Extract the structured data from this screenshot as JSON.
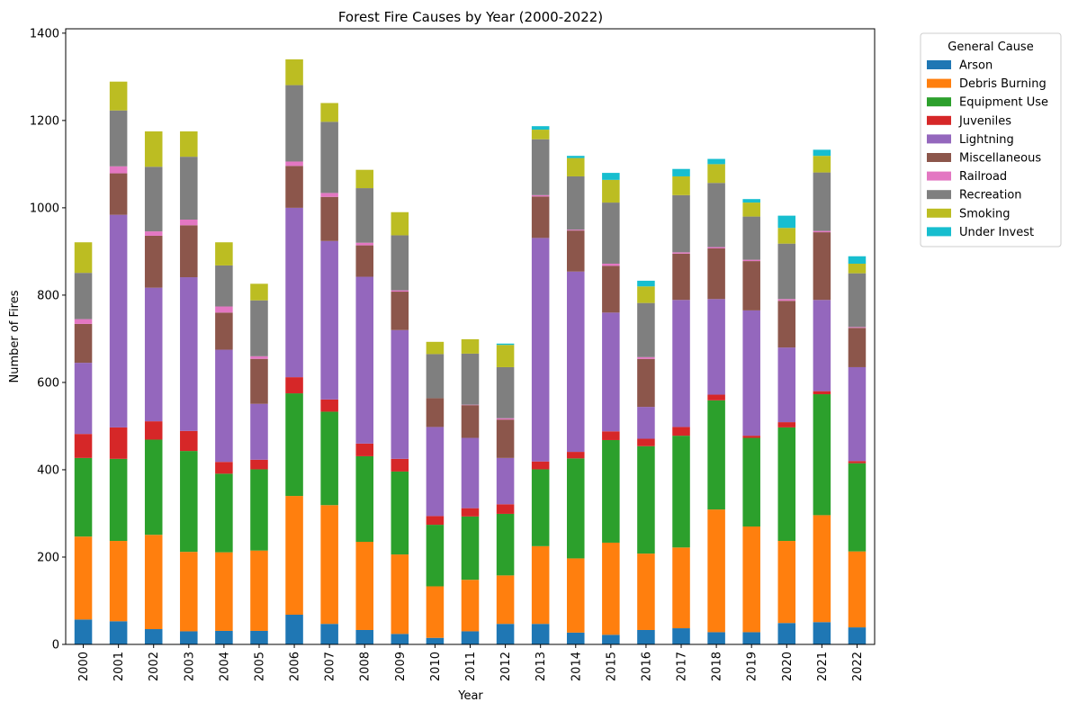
{
  "chart_data": {
    "type": "bar",
    "stacked": true,
    "title": "Forest Fire Causes by Year (2000-2022)",
    "xlabel": "Year",
    "ylabel": "Number of Fires",
    "ylim": [
      0,
      1410
    ],
    "yticks": [
      0,
      200,
      400,
      600,
      800,
      1000,
      1200,
      1400
    ],
    "grid": false,
    "legend_title": "General Cause",
    "legend_position": "outside-top-right",
    "categories": [
      "2000",
      "2001",
      "2002",
      "2003",
      "2004",
      "2005",
      "2006",
      "2007",
      "2008",
      "2009",
      "2010",
      "2011",
      "2012",
      "2013",
      "2014",
      "2015",
      "2016",
      "2017",
      "2018",
      "2019",
      "2020",
      "2021",
      "2022"
    ],
    "series": [
      {
        "name": "Arson",
        "color": "#1f77b4",
        "values": [
          57,
          53,
          35,
          30,
          31,
          31,
          68,
          47,
          33,
          24,
          15,
          30,
          47,
          47,
          27,
          22,
          33,
          37,
          28,
          28,
          49,
          51,
          39
        ]
      },
      {
        "name": "Debris Burning",
        "color": "#ff7f0e",
        "values": [
          190,
          184,
          216,
          182,
          180,
          184,
          272,
          272,
          202,
          182,
          118,
          118,
          111,
          178,
          170,
          211,
          175,
          185,
          281,
          242,
          188,
          245,
          174
        ]
      },
      {
        "name": "Equipment Use",
        "color": "#2ca02c",
        "values": [
          180,
          188,
          218,
          231,
          180,
          186,
          235,
          214,
          196,
          190,
          141,
          145,
          141,
          176,
          229,
          235,
          246,
          256,
          250,
          203,
          260,
          277,
          202
        ]
      },
      {
        "name": "Juveniles",
        "color": "#d62728",
        "values": [
          55,
          72,
          42,
          46,
          27,
          22,
          37,
          28,
          29,
          29,
          20,
          19,
          22,
          18,
          15,
          20,
          17,
          20,
          13,
          5,
          12,
          7,
          5
        ]
      },
      {
        "name": "Lightning",
        "color": "#9467bd",
        "values": [
          163,
          487,
          306,
          352,
          257,
          128,
          388,
          363,
          382,
          295,
          204,
          161,
          106,
          512,
          413,
          272,
          73,
          291,
          219,
          287,
          171,
          209,
          215
        ]
      },
      {
        "name": "Miscellaneous",
        "color": "#8c564b",
        "values": [
          89,
          95,
          119,
          119,
          85,
          103,
          96,
          101,
          72,
          88,
          66,
          75,
          88,
          95,
          94,
          107,
          110,
          106,
          116,
          113,
          107,
          155,
          90
        ]
      },
      {
        "name": "Railroad",
        "color": "#e377c2",
        "values": [
          11,
          16,
          10,
          13,
          14,
          6,
          10,
          9,
          6,
          3,
          0,
          1,
          3,
          3,
          2,
          5,
          4,
          3,
          3,
          3,
          4,
          3,
          2
        ]
      },
      {
        "name": "Recreation",
        "color": "#7f7f7f",
        "values": [
          106,
          128,
          148,
          144,
          94,
          128,
          175,
          163,
          125,
          126,
          101,
          117,
          117,
          128,
          122,
          140,
          124,
          131,
          147,
          99,
          127,
          134,
          123
        ]
      },
      {
        "name": "Smoking",
        "color": "#bcbd22",
        "values": [
          70,
          66,
          81,
          58,
          53,
          38,
          59,
          43,
          42,
          53,
          28,
          33,
          51,
          22,
          42,
          52,
          38,
          43,
          43,
          32,
          36,
          38,
          22
        ]
      },
      {
        "name": "Under Invest",
        "color": "#17becf",
        "values": [
          0,
          0,
          0,
          0,
          0,
          0,
          0,
          0,
          0,
          0,
          0,
          0,
          3,
          8,
          5,
          16,
          13,
          17,
          12,
          8,
          28,
          14,
          17
        ]
      }
    ]
  }
}
